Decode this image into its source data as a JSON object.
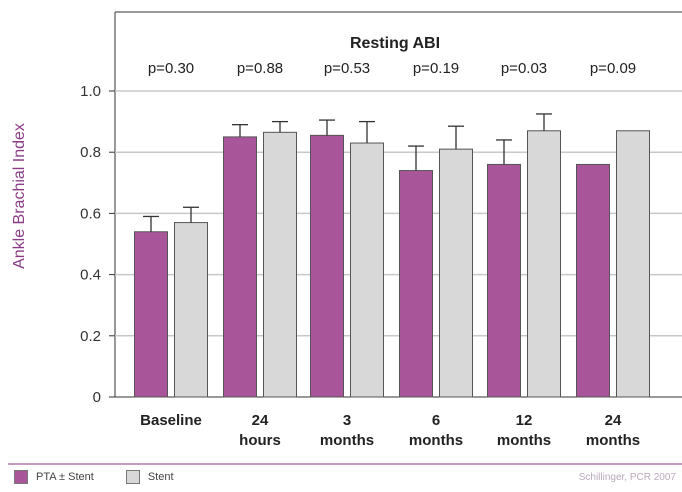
{
  "chart_data": {
    "type": "bar",
    "title": "Resting ABI",
    "ylabel": "Ankle Brachial Index",
    "xlabel": "",
    "ylim": [
      0,
      1.0
    ],
    "yticks": [
      "0",
      "0.2",
      "0.4",
      "0.6",
      "0.8",
      "1.0"
    ],
    "categories": [
      [
        "Baseline"
      ],
      [
        "24",
        "hours"
      ],
      [
        "3",
        "months"
      ],
      [
        "6",
        "months"
      ],
      [
        "12",
        "months"
      ],
      [
        "24",
        "months"
      ]
    ],
    "p_values": [
      "p=0.30",
      "p=0.88",
      "p=0.53",
      "p=0.19",
      "p=0.03",
      "p=0.09"
    ],
    "series": [
      {
        "name": "PTA ± Stent",
        "color": "#a8559a",
        "values": [
          0.54,
          0.85,
          0.855,
          0.74,
          0.76,
          0.76
        ],
        "errors": [
          0.05,
          0.04,
          0.05,
          0.08,
          0.08,
          null
        ]
      },
      {
        "name": "Stent",
        "color": "#d8d8d8",
        "values": [
          0.57,
          0.865,
          0.83,
          0.81,
          0.87,
          0.87
        ],
        "errors": [
          0.05,
          0.035,
          0.07,
          0.075,
          0.055,
          null
        ]
      }
    ],
    "grid": true,
    "legend_position": "bottom-left"
  },
  "legend": {
    "series1": "PTA ± Stent",
    "series2": "Stent"
  },
  "credit": "Schillinger, PCR 2007"
}
